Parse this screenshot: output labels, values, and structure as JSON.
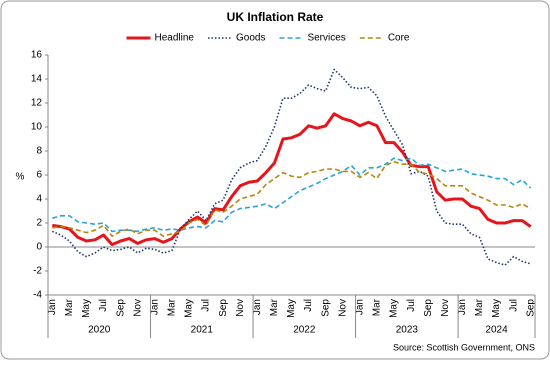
{
  "chart_data": {
    "type": "line",
    "title": "UK Inflation Rate",
    "y_label": "%",
    "source": "Source: Scottish Government, ONS",
    "categories": [
      "Jan",
      null,
      "Mar",
      null,
      "May",
      null,
      "Jul",
      null,
      "Sep",
      null,
      "Nov",
      null,
      "Jan",
      null,
      "Mar",
      null,
      "May",
      null,
      "Jul",
      null,
      "Sep",
      null,
      "Nov",
      null,
      "Jan",
      null,
      "Mar",
      null,
      "May",
      null,
      "Jul",
      null,
      "Sep",
      null,
      "Nov",
      null,
      "Jan",
      null,
      "Mar",
      null,
      "May",
      null,
      "Jul",
      null,
      "Sep",
      null,
      "Nov",
      null,
      "Jan",
      null,
      "Mar",
      null,
      "May",
      null,
      "Jul",
      null,
      "Sep"
    ],
    "years": [
      "2020",
      "2021",
      "2022",
      "2023",
      "2024"
    ],
    "ylim": [
      -4,
      16
    ],
    "yticks": [
      -4,
      -2,
      0,
      2,
      4,
      6,
      8,
      10,
      12,
      14,
      16
    ],
    "grid": false,
    "legend": "top",
    "series": [
      {
        "name": "Headline",
        "color": "#e8141b",
        "line_style": "solid",
        "values": [
          1.8,
          1.7,
          1.5,
          0.8,
          0.5,
          0.6,
          1.0,
          0.2,
          0.5,
          0.7,
          0.3,
          0.6,
          0.7,
          0.4,
          0.7,
          1.5,
          2.1,
          2.5,
          2.0,
          3.2,
          3.1,
          4.2,
          5.1,
          5.4,
          5.5,
          6.2,
          7.0,
          9.0,
          9.1,
          9.4,
          10.1,
          9.9,
          10.1,
          11.1,
          10.7,
          10.5,
          10.1,
          10.4,
          10.1,
          8.7,
          8.7,
          7.9,
          6.8,
          6.7,
          6.7,
          4.6,
          3.9,
          4.0,
          4.0,
          3.4,
          3.2,
          2.3,
          2.0,
          2.0,
          2.2,
          2.2,
          1.7
        ]
      },
      {
        "name": "Goods",
        "color": "#1f3470",
        "line_style": "dotted",
        "values": [
          1.3,
          1.0,
          0.5,
          -0.4,
          -0.8,
          -0.5,
          0.0,
          -0.3,
          -0.2,
          0.0,
          -0.5,
          -0.1,
          -0.2,
          -0.5,
          -0.3,
          1.5,
          2.3,
          3.0,
          2.2,
          3.6,
          3.9,
          5.6,
          6.6,
          7.0,
          7.2,
          8.4,
          10.0,
          12.4,
          12.4,
          12.8,
          13.5,
          13.2,
          13.0,
          14.8,
          14.1,
          13.3,
          13.2,
          13.3,
          12.6,
          10.9,
          9.7,
          8.5,
          6.1,
          6.3,
          5.9,
          3.0,
          2.0,
          1.9,
          1.9,
          1.1,
          0.8,
          -1.0,
          -1.3,
          -1.5,
          -0.8,
          -1.2,
          -1.4
        ]
      },
      {
        "name": "Services",
        "color": "#2aa3d8",
        "line_style": "dashed",
        "values": [
          2.4,
          2.6,
          2.6,
          2.1,
          2.0,
          1.9,
          2.0,
          1.3,
          1.4,
          1.4,
          1.3,
          1.5,
          1.6,
          1.4,
          1.5,
          1.4,
          1.6,
          1.7,
          1.6,
          2.2,
          2.1,
          2.9,
          3.2,
          3.3,
          3.4,
          3.6,
          3.2,
          3.7,
          4.2,
          4.7,
          5.0,
          5.3,
          5.7,
          6.0,
          6.3,
          6.8,
          6.0,
          6.6,
          6.6,
          6.9,
          7.4,
          7.2,
          7.4,
          6.8,
          6.9,
          6.6,
          6.3,
          6.4,
          6.5,
          6.1,
          6.0,
          5.9,
          5.7,
          5.7,
          5.2,
          5.6,
          4.9
        ]
      },
      {
        "name": "Core",
        "color": "#b8860b",
        "line_style": "dashed",
        "values": [
          1.6,
          1.7,
          1.6,
          1.4,
          1.2,
          1.4,
          1.8,
          0.9,
          1.3,
          1.5,
          1.1,
          1.4,
          1.4,
          0.9,
          1.1,
          1.3,
          2.0,
          2.3,
          1.8,
          3.1,
          2.9,
          3.4,
          4.0,
          4.2,
          4.4,
          5.2,
          5.7,
          6.2,
          5.9,
          5.8,
          6.2,
          6.3,
          6.5,
          6.5,
          6.3,
          6.3,
          5.8,
          6.2,
          5.7,
          6.8,
          7.1,
          6.9,
          6.9,
          6.2,
          6.1,
          5.7,
          5.1,
          5.1,
          5.1,
          4.5,
          4.2,
          3.9,
          3.5,
          3.5,
          3.3,
          3.6,
          3.2
        ]
      }
    ]
  }
}
